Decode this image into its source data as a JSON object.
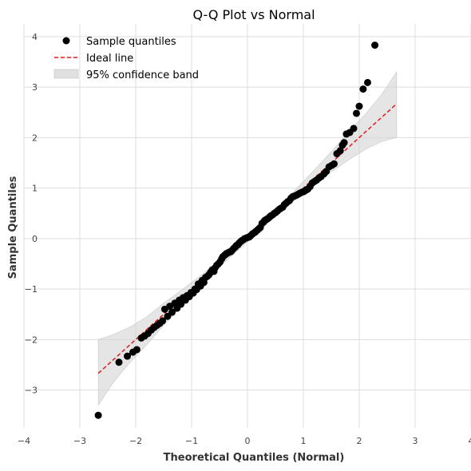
{
  "chart_data": {
    "type": "scatter",
    "title": "Q-Q Plot vs Normal",
    "xlabel": "Theoretical Quantiles (Normal)",
    "ylabel": "Sample Quantiles",
    "xlim": [
      -4,
      4
    ],
    "ylim": [
      -3.75,
      4.25
    ],
    "xticks": [
      -4,
      -3,
      -2,
      -1,
      0,
      1,
      2,
      3,
      4
    ],
    "yticks": [
      -3,
      -2,
      -1,
      0,
      1,
      2,
      3,
      4
    ],
    "tick_labels": {
      "x": [
        "−4",
        "−3",
        "−2",
        "−1",
        "0",
        "1",
        "2",
        "3",
        "4"
      ],
      "y": [
        "−3",
        "−2",
        "−1",
        "0",
        "1",
        "2",
        "3",
        "4"
      ]
    },
    "grid": true,
    "legend": {
      "position": "top-left",
      "entries": [
        "Sample quantiles",
        "Ideal line",
        "95% confidence band"
      ]
    },
    "series": [
      {
        "name": "Sample quantiles",
        "kind": "scatter",
        "color": "#000000",
        "points": [
          [
            -2.67,
            -3.5
          ],
          [
            -2.3,
            -2.45
          ],
          [
            -2.15,
            -2.33
          ],
          [
            -2.05,
            -2.25
          ],
          [
            -1.98,
            -2.2
          ],
          [
            -1.9,
            -1.97
          ],
          [
            -1.84,
            -1.93
          ],
          [
            -1.78,
            -1.88
          ],
          [
            -1.72,
            -1.81
          ],
          [
            -1.67,
            -1.76
          ],
          [
            -1.62,
            -1.72
          ],
          [
            -1.57,
            -1.68
          ],
          [
            -1.52,
            -1.63
          ],
          [
            -1.48,
            -1.4
          ],
          [
            -1.43,
            -1.54
          ],
          [
            -1.39,
            -1.34
          ],
          [
            -1.35,
            -1.46
          ],
          [
            -1.3,
            -1.28
          ],
          [
            -1.26,
            -1.38
          ],
          [
            -1.22,
            -1.22
          ],
          [
            -1.19,
            -1.3
          ],
          [
            -1.15,
            -1.17
          ],
          [
            -1.11,
            -1.22
          ],
          [
            -1.08,
            -1.13
          ],
          [
            -1.04,
            -1.15
          ],
          [
            -1.01,
            -1.07
          ],
          [
            -0.97,
            -1.08
          ],
          [
            -0.94,
            -1.0
          ],
          [
            -0.91,
            -1.01
          ],
          [
            -0.88,
            -0.9
          ],
          [
            -0.84,
            -0.94
          ],
          [
            -0.81,
            -0.83
          ],
          [
            -0.78,
            -0.87
          ],
          [
            -0.75,
            -0.77
          ],
          [
            -0.72,
            -0.75
          ],
          [
            -0.69,
            -0.72
          ],
          [
            -0.66,
            -0.67
          ],
          [
            -0.63,
            -0.62
          ],
          [
            -0.6,
            -0.65
          ],
          [
            -0.58,
            -0.58
          ],
          [
            -0.55,
            -0.53
          ],
          [
            -0.52,
            -0.5
          ],
          [
            -0.49,
            -0.46
          ],
          [
            -0.46,
            -0.4
          ],
          [
            -0.44,
            -0.36
          ],
          [
            -0.41,
            -0.33
          ],
          [
            -0.38,
            -0.3
          ],
          [
            -0.36,
            -0.29
          ],
          [
            -0.33,
            -0.27
          ],
          [
            -0.3,
            -0.26
          ],
          [
            -0.28,
            -0.24
          ],
          [
            -0.25,
            -0.2
          ],
          [
            -0.22,
            -0.17
          ],
          [
            -0.2,
            -0.14
          ],
          [
            -0.17,
            -0.12
          ],
          [
            -0.15,
            -0.09
          ],
          [
            -0.12,
            -0.06
          ],
          [
            -0.1,
            -0.04
          ],
          [
            -0.07,
            -0.02
          ],
          [
            -0.05,
            0.0
          ],
          [
            -0.02,
            0.01
          ],
          [
            0.0,
            0.02
          ],
          [
            0.03,
            0.03
          ],
          [
            0.05,
            0.05
          ],
          [
            0.08,
            0.08
          ],
          [
            0.1,
            0.1
          ],
          [
            0.13,
            0.12
          ],
          [
            0.15,
            0.14
          ],
          [
            0.18,
            0.17
          ],
          [
            0.21,
            0.2
          ],
          [
            0.23,
            0.22
          ],
          [
            0.26,
            0.3
          ],
          [
            0.29,
            0.33
          ],
          [
            0.31,
            0.36
          ],
          [
            0.34,
            0.38
          ],
          [
            0.37,
            0.4
          ],
          [
            0.4,
            0.43
          ],
          [
            0.42,
            0.45
          ],
          [
            0.45,
            0.47
          ],
          [
            0.48,
            0.5
          ],
          [
            0.51,
            0.52
          ],
          [
            0.54,
            0.55
          ],
          [
            0.57,
            0.58
          ],
          [
            0.6,
            0.6
          ],
          [
            0.63,
            0.62
          ],
          [
            0.66,
            0.67
          ],
          [
            0.69,
            0.7
          ],
          [
            0.72,
            0.73
          ],
          [
            0.75,
            0.75
          ],
          [
            0.78,
            0.8
          ],
          [
            0.81,
            0.83
          ],
          [
            0.84,
            0.84
          ],
          [
            0.88,
            0.86
          ],
          [
            0.91,
            0.88
          ],
          [
            0.94,
            0.9
          ],
          [
            0.98,
            0.92
          ],
          [
            1.01,
            0.93
          ],
          [
            1.05,
            0.96
          ],
          [
            1.08,
            0.98
          ],
          [
            1.12,
            1.03
          ],
          [
            1.16,
            1.1
          ],
          [
            1.2,
            1.13
          ],
          [
            1.24,
            1.16
          ],
          [
            1.28,
            1.2
          ],
          [
            1.32,
            1.23
          ],
          [
            1.37,
            1.28
          ],
          [
            1.41,
            1.33
          ],
          [
            1.46,
            1.42
          ],
          [
            1.51,
            1.45
          ],
          [
            1.55,
            1.48
          ],
          [
            1.6,
            1.68
          ],
          [
            1.66,
            1.74
          ],
          [
            1.7,
            1.85
          ],
          [
            1.73,
            1.9
          ],
          [
            1.77,
            2.07
          ],
          [
            1.83,
            2.1
          ],
          [
            1.9,
            2.18
          ],
          [
            1.95,
            2.48
          ],
          [
            2.0,
            2.62
          ],
          [
            2.07,
            2.96
          ],
          [
            2.15,
            3.09
          ],
          [
            2.28,
            3.83
          ]
        ]
      },
      {
        "name": "Ideal line",
        "kind": "line",
        "color": "#e31a1c",
        "style": "dashed",
        "x": [
          -2.67,
          2.67
        ],
        "y": [
          -2.67,
          2.67
        ]
      },
      {
        "name": "95% confidence band",
        "kind": "band",
        "color": "#d3d3d3",
        "x": [
          -2.67,
          -2.4,
          -2.1,
          -1.8,
          -1.5,
          -1.2,
          -0.8,
          -0.4,
          0.0,
          0.4,
          0.8,
          1.2,
          1.5,
          1.8,
          2.1,
          2.4,
          2.67
        ],
        "lower": [
          -3.3,
          -2.85,
          -2.45,
          -2.1,
          -1.72,
          -1.36,
          -0.9,
          -0.46,
          -0.06,
          0.34,
          0.72,
          1.07,
          1.32,
          1.55,
          1.76,
          1.92,
          2.0
        ],
        "upper": [
          -2.0,
          -1.9,
          -1.75,
          -1.55,
          -1.28,
          -1.04,
          -0.7,
          -0.34,
          0.06,
          0.46,
          0.9,
          1.36,
          1.72,
          2.1,
          2.45,
          2.85,
          3.3
        ]
      }
    ]
  }
}
